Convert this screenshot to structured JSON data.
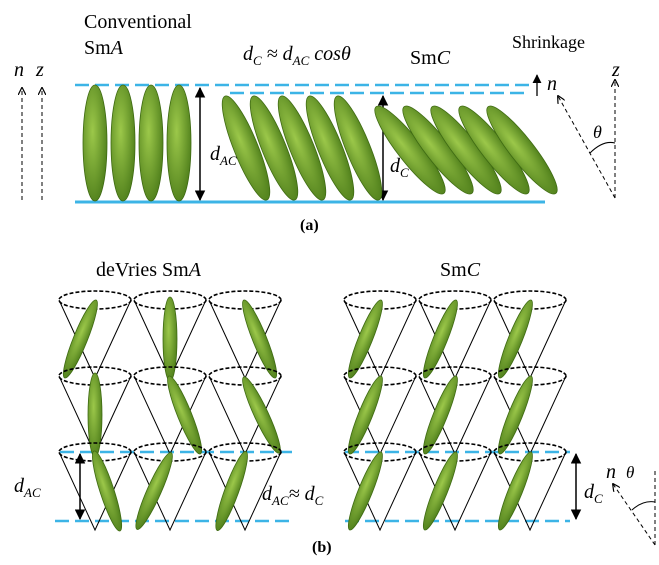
{
  "panel_a": {
    "label": "(a)",
    "conventional": {
      "line1": "Conventional",
      "sm": "Sm",
      "phase": "A"
    },
    "formula": {
      "d1": "d",
      "sub1": "C",
      "approx": " ≈ ",
      "d2": "d",
      "sub2": "AC",
      "cos": " cosθ"
    },
    "smc": {
      "sm": "Sm",
      "phase": "C"
    },
    "shrinkage": "Shrinkage",
    "n_left": "n",
    "z_left": "z",
    "n_right": "n",
    "z_right": "z",
    "theta": "θ",
    "dac": {
      "d": "d",
      "sub": "AC"
    },
    "dc": {
      "d": "d",
      "sub": "C"
    }
  },
  "panel_b": {
    "label": "(b)",
    "devries": {
      "name": "deVries Sm",
      "phase": "A"
    },
    "smc": {
      "sm": "Sm",
      "phase": "C"
    },
    "dac": {
      "d": "d",
      "sub": "AC"
    },
    "equal": {
      "d1": "d",
      "sub1": "AC",
      "approx": "≈ ",
      "d2": "d",
      "sub2": "C"
    },
    "dc": {
      "d": "d",
      "sub": "C"
    },
    "n": "n",
    "theta": "θ"
  }
}
